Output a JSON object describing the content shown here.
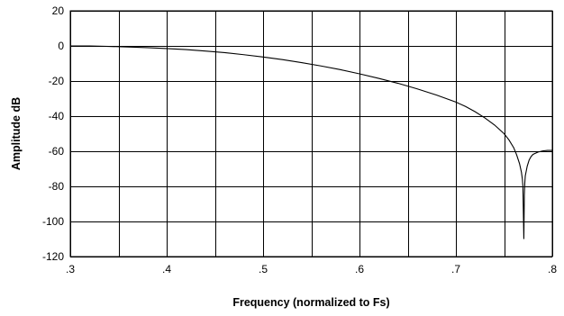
{
  "chart_data": {
    "type": "line",
    "title": "",
    "xlabel": "Frequency (normalized to Fs)",
    "ylabel": "Amplitude dB",
    "xlim": [
      0.3,
      0.8
    ],
    "ylim": [
      -120,
      20
    ],
    "grid": true,
    "legend": "none",
    "x_ticks": [
      0.3,
      0.35,
      0.4,
      0.45,
      0.5,
      0.55,
      0.6,
      0.65,
      0.7,
      0.75,
      0.8
    ],
    "x_tick_labels": [
      {
        "value": 0.3,
        "label": ".3"
      },
      {
        "value": 0.4,
        "label": ".4"
      },
      {
        "value": 0.5,
        "label": ".5"
      },
      {
        "value": 0.6,
        "label": ".6"
      },
      {
        "value": 0.7,
        "label": ".7"
      },
      {
        "value": 0.8,
        "label": ".8"
      }
    ],
    "y_ticks": [
      20,
      0,
      -20,
      -40,
      -60,
      -80,
      -100,
      -120
    ],
    "y_tick_labels": [
      "20",
      "0",
      "-20",
      "-40",
      "-60",
      "-80",
      "-100",
      "-120"
    ],
    "line_color": "#000000",
    "series": [
      {
        "x": [
          0.3,
          0.32,
          0.34,
          0.36,
          0.38,
          0.4,
          0.42,
          0.44,
          0.46,
          0.48,
          0.5,
          0.52,
          0.54,
          0.56,
          0.58,
          0.6,
          0.62,
          0.64,
          0.66,
          0.68,
          0.7,
          0.71,
          0.72,
          0.73,
          0.74,
          0.75,
          0.755,
          0.76,
          0.763,
          0.766,
          0.768,
          0.769,
          0.7695,
          0.77,
          0.7705,
          0.7708,
          0.771,
          0.7715,
          0.772,
          0.774,
          0.776,
          0.778,
          0.78,
          0.785,
          0.79,
          0.795,
          0.8
        ],
        "y": [
          0,
          0,
          -0.3,
          -0.6,
          -1,
          -1.5,
          -2.1,
          -2.9,
          -3.8,
          -5,
          -6.3,
          -7.8,
          -9.5,
          -11.4,
          -13.5,
          -15.9,
          -18.5,
          -21.3,
          -24.5,
          -28,
          -32,
          -34.5,
          -37.5,
          -41,
          -45,
          -50,
          -53.5,
          -58,
          -62,
          -67,
          -72,
          -76,
          -80,
          -95,
          -110,
          -95,
          -85,
          -78,
          -74,
          -68.5,
          -65,
          -63,
          -61.8,
          -60.5,
          -59.8,
          -59.5,
          -59.5
        ]
      }
    ]
  }
}
